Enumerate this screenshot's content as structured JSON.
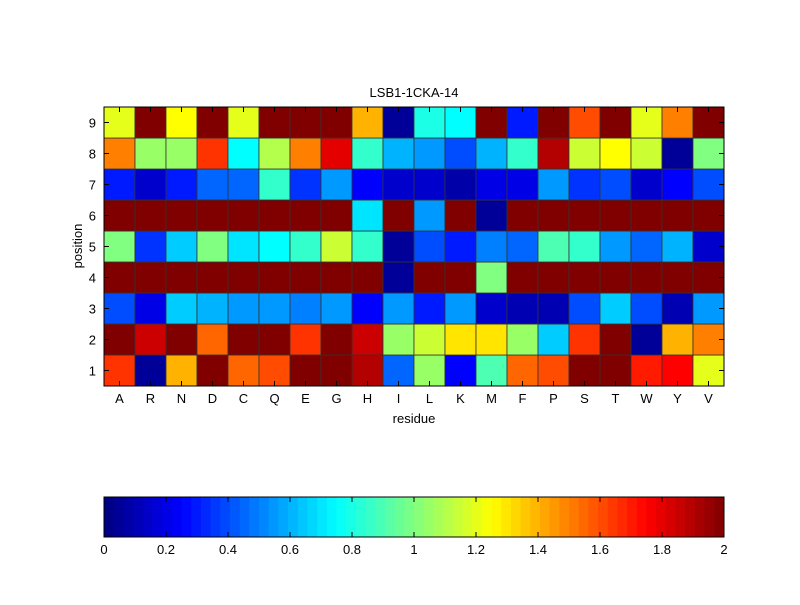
{
  "chart_data": {
    "type": "heatmap",
    "title": "LSB1-1CKA-14",
    "xlabel": "residue",
    "ylabel": "position",
    "x_categories": [
      "A",
      "R",
      "N",
      "D",
      "C",
      "Q",
      "E",
      "G",
      "H",
      "I",
      "L",
      "K",
      "M",
      "F",
      "P",
      "S",
      "T",
      "W",
      "Y",
      "V"
    ],
    "y_categories": [
      "1",
      "2",
      "3",
      "4",
      "5",
      "6",
      "7",
      "8",
      "9"
    ],
    "colormap": "jet",
    "clim": [
      0,
      2
    ],
    "colorbar_ticks": [
      "0",
      "0.2",
      "0.4",
      "0.6",
      "0.8",
      "1",
      "1.2",
      "1.4",
      "1.6",
      "1.8",
      "2"
    ],
    "values_by_position": {
      "1": [
        1.65,
        0.05,
        1.4,
        2,
        1.55,
        1.6,
        2,
        2,
        1.9,
        0.45,
        1.05,
        0.25,
        0.9,
        1.55,
        1.6,
        2,
        2,
        1.7,
        1.75,
        1.2
      ],
      "2": [
        2,
        1.85,
        2,
        1.55,
        2,
        2,
        1.65,
        2,
        1.85,
        1.05,
        1.15,
        1.3,
        1.3,
        1.05,
        0.65,
        1.65,
        2,
        0.05,
        1.4,
        1.5
      ],
      "3": [
        0.4,
        0.2,
        0.65,
        0.6,
        0.55,
        0.55,
        0.5,
        0.55,
        0.25,
        0.55,
        0.3,
        0.55,
        0.15,
        0.1,
        0.1,
        0.4,
        0.65,
        0.4,
        0.1,
        0.55
      ],
      "4": [
        2,
        2,
        2,
        2,
        2,
        2,
        2,
        2,
        2,
        0.05,
        2,
        2,
        1.0,
        2,
        2,
        2,
        2,
        2,
        2,
        2
      ],
      "5": [
        1.0,
        0.35,
        0.65,
        1.0,
        0.7,
        0.75,
        0.85,
        1.15,
        0.85,
        0.05,
        0.4,
        0.3,
        0.5,
        0.45,
        0.9,
        0.85,
        0.55,
        0.45,
        0.6,
        0.15
      ],
      "6": [
        2,
        2,
        2,
        2,
        2,
        2,
        2,
        2,
        0.7,
        2,
        0.55,
        2,
        0.05,
        2,
        2,
        2,
        2,
        2,
        2,
        2
      ],
      "7": [
        0.3,
        0.15,
        0.3,
        0.45,
        0.45,
        0.85,
        0.35,
        0.55,
        0.25,
        0.15,
        0.15,
        0.08,
        0.2,
        0.2,
        0.55,
        0.35,
        0.4,
        0.15,
        0.25,
        0.4
      ],
      "8": [
        1.5,
        1.05,
        1.05,
        1.65,
        0.75,
        1.1,
        1.5,
        1.8,
        0.85,
        0.6,
        0.55,
        0.4,
        0.6,
        0.85,
        1.9,
        1.15,
        1.25,
        1.15,
        0.05,
        1.0
      ],
      "9": [
        1.2,
        2,
        1.25,
        2,
        1.2,
        2,
        2,
        2,
        1.4,
        0.05,
        0.8,
        0.75,
        2,
        0.3,
        2,
        1.6,
        2,
        1.2,
        1.5,
        2
      ]
    }
  }
}
